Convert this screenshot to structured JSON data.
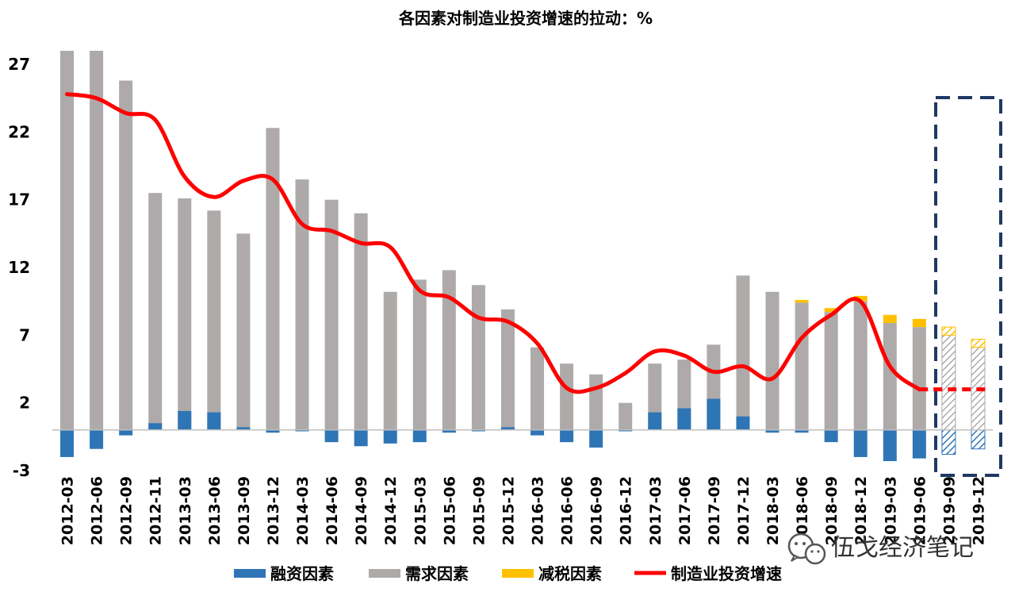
{
  "chart_data": {
    "type": "bar",
    "title": "各因素对制造业投资增速的拉动：%",
    "xlabel": "",
    "ylabel": "",
    "ylim": [
      -3,
      28
    ],
    "yticks": [
      "27",
      "22",
      "17",
      "12",
      "7",
      "2",
      "-3"
    ],
    "categories": [
      "2012-03",
      "2012-06",
      "2012-09",
      "2012-11",
      "2013-03",
      "2013-06",
      "2013-09",
      "2013-12",
      "2014-03",
      "2014-06",
      "2014-09",
      "2014-12",
      "2015-03",
      "2015-06",
      "2015-09",
      "2015-12",
      "2016-03",
      "2016-06",
      "2016-09",
      "2016-12",
      "2017-03",
      "2017-06",
      "2017-09",
      "2017-12",
      "2018-03",
      "2018-06",
      "2018-09",
      "2018-12",
      "2019-03",
      "2019-06",
      "2019-09",
      "2019-12"
    ],
    "forecast_from_index": 30,
    "series": [
      {
        "name": "融资因素",
        "kind": "bar",
        "color": "#2e75b6",
        "values": [
          -2.0,
          -1.4,
          -0.4,
          0.5,
          1.4,
          1.3,
          0.2,
          -0.2,
          -0.1,
          -0.9,
          -1.2,
          -1.0,
          -0.9,
          -0.2,
          -0.1,
          0.2,
          -0.4,
          -0.9,
          -1.3,
          -0.1,
          1.3,
          1.6,
          2.3,
          1.0,
          -0.2,
          -0.2,
          -0.9,
          -2.0,
          -2.3,
          -2.1,
          -1.8,
          -1.4
        ]
      },
      {
        "name": "需求因素",
        "kind": "bar",
        "color": "#aeaaaa",
        "values": [
          28.2,
          28.2,
          25.8,
          17.5,
          17.1,
          16.2,
          14.5,
          22.3,
          18.5,
          17.0,
          16.0,
          10.2,
          11.1,
          11.8,
          10.7,
          8.9,
          6.1,
          4.9,
          4.1,
          2.0,
          4.9,
          5.2,
          6.3,
          11.4,
          10.2,
          9.4,
          8.7,
          9.5,
          7.9,
          7.6,
          7.0,
          6.1
        ]
      },
      {
        "name": "减税因素",
        "kind": "bar",
        "color": "#ffc000",
        "values": [
          0,
          0,
          0,
          0,
          0,
          0,
          0,
          0,
          0,
          0,
          0,
          0,
          0,
          0,
          0,
          0,
          0,
          0,
          0,
          0,
          0,
          0,
          0,
          0,
          0,
          0.2,
          0.3,
          0.4,
          0.6,
          0.6,
          0.6,
          0.6
        ]
      },
      {
        "name": "制造业投资增速",
        "kind": "line",
        "color": "#ff0000",
        "values": [
          24.8,
          24.5,
          23.4,
          22.9,
          18.7,
          17.2,
          18.4,
          18.5,
          15.2,
          14.7,
          13.8,
          13.5,
          10.3,
          9.8,
          8.3,
          8.0,
          6.4,
          3.1,
          3.1,
          4.2,
          5.8,
          5.5,
          4.3,
          4.7,
          3.8,
          6.8,
          8.5,
          9.5,
          4.7,
          3.0,
          3.0,
          3.0
        ]
      }
    ],
    "legend_position": "bottom",
    "grid": false
  },
  "watermark": {
    "text": "伍戈经济笔记",
    "icon": "wechat-icon"
  }
}
